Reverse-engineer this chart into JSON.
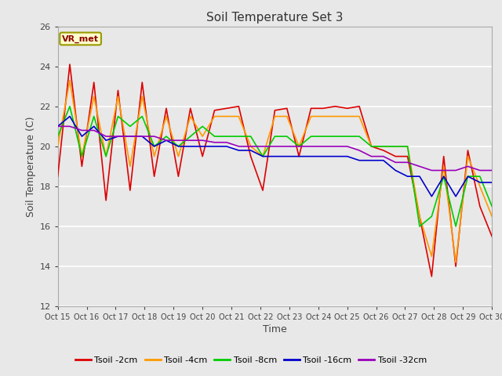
{
  "title": "Soil Temperature Set 3",
  "xlabel": "Time",
  "ylabel": "Soil Temperature (C)",
  "ylim": [
    12,
    26
  ],
  "fig_bg_color": "#e8e8e8",
  "plot_bg_color": "#e8e8e8",
  "annotation_text": "VR_met",
  "annotation_bg": "#ffffcc",
  "annotation_border": "#999900",
  "legend_labels": [
    "Tsoil -2cm",
    "Tsoil -4cm",
    "Tsoil -8cm",
    "Tsoil -16cm",
    "Tsoil -32cm"
  ],
  "line_colors": [
    "#dd0000",
    "#ff9900",
    "#00cc00",
    "#0000cc",
    "#9900bb"
  ],
  "x_tick_labels": [
    "Oct 15",
    "Oct 16",
    "Oct 17",
    "Oct 18",
    "Oct 19",
    "Oct 20",
    "Oct 21",
    "Oct 22",
    "Oct 23",
    "Oct 24",
    "Oct 25",
    "Oct 26",
    "Oct 27",
    "Oct 28",
    "Oct 29",
    "Oct 30"
  ],
  "tsoil_2cm": [
    18.5,
    24.1,
    19.0,
    23.2,
    17.3,
    22.8,
    17.8,
    23.2,
    18.5,
    21.9,
    18.5,
    21.9,
    19.5,
    21.8,
    21.9,
    22.0,
    19.5,
    17.8,
    21.8,
    21.9,
    19.5,
    21.9,
    21.9,
    22.0,
    21.9,
    22.0,
    20.0,
    19.8,
    19.5,
    19.5,
    16.5,
    13.5,
    19.5,
    14.0,
    19.8,
    17.0,
    15.5
  ],
  "tsoil_4cm": [
    20.0,
    23.3,
    19.5,
    22.5,
    19.5,
    22.5,
    19.0,
    22.5,
    19.5,
    21.5,
    19.5,
    21.5,
    20.5,
    21.5,
    21.5,
    21.5,
    20.0,
    19.5,
    21.5,
    21.5,
    20.0,
    21.5,
    21.5,
    21.5,
    21.5,
    21.5,
    20.0,
    20.0,
    20.0,
    20.0,
    16.5,
    14.5,
    19.0,
    14.2,
    19.5,
    18.0,
    16.5
  ],
  "tsoil_8cm": [
    20.5,
    22.0,
    19.5,
    21.5,
    19.5,
    21.5,
    21.0,
    21.5,
    20.0,
    20.5,
    20.0,
    20.5,
    21.0,
    20.5,
    20.5,
    20.5,
    20.5,
    19.5,
    20.5,
    20.5,
    20.0,
    20.5,
    20.5,
    20.5,
    20.5,
    20.5,
    20.0,
    20.0,
    20.0,
    20.0,
    16.0,
    16.5,
    18.5,
    16.0,
    18.5,
    18.5,
    17.0
  ],
  "tsoil_16cm": [
    21.0,
    21.5,
    20.5,
    21.0,
    20.3,
    20.5,
    20.5,
    20.5,
    20.0,
    20.3,
    20.0,
    20.0,
    20.0,
    20.0,
    20.0,
    19.8,
    19.8,
    19.5,
    19.5,
    19.5,
    19.5,
    19.5,
    19.5,
    19.5,
    19.5,
    19.3,
    19.3,
    19.3,
    18.8,
    18.5,
    18.5,
    17.5,
    18.5,
    17.5,
    18.5,
    18.2,
    18.2
  ],
  "tsoil_32cm": [
    21.0,
    21.0,
    20.8,
    20.8,
    20.5,
    20.5,
    20.5,
    20.5,
    20.5,
    20.3,
    20.3,
    20.3,
    20.3,
    20.2,
    20.2,
    20.0,
    20.0,
    20.0,
    20.0,
    20.0,
    20.0,
    20.0,
    20.0,
    20.0,
    20.0,
    19.8,
    19.5,
    19.5,
    19.2,
    19.2,
    19.0,
    18.8,
    18.8,
    18.8,
    19.0,
    18.8,
    18.8
  ]
}
